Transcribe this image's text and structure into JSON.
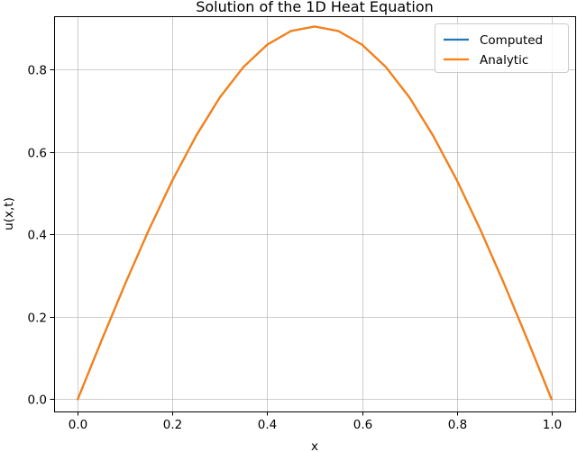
{
  "chart_data": {
    "type": "line",
    "title": "Solution of the 1D Heat Equation",
    "xlabel": "x",
    "ylabel": "u(x,t)",
    "xlim": [
      -0.05,
      1.05
    ],
    "ylim": [
      -0.03,
      0.93
    ],
    "xticks": [
      0.0,
      0.2,
      0.4,
      0.6,
      0.8,
      1.0
    ],
    "xtick_labels": [
      "0.0",
      "0.2",
      "0.4",
      "0.6",
      "0.8",
      "1.0"
    ],
    "yticks": [
      0.0,
      0.2,
      0.4,
      0.6,
      0.8
    ],
    "ytick_labels": [
      "0.0",
      "0.2",
      "0.4",
      "0.6",
      "0.8"
    ],
    "grid": true,
    "legend_position": "top-right",
    "series": [
      {
        "name": "Computed",
        "color": "#1f77b4",
        "x": [
          0.0,
          0.05,
          0.1,
          0.15,
          0.2,
          0.25,
          0.3,
          0.35,
          0.4,
          0.45,
          0.5,
          0.55,
          0.6,
          0.65,
          0.7,
          0.75,
          0.8,
          0.85,
          0.9,
          0.95,
          1.0
        ],
        "y": [
          0.0,
          0.142,
          0.28,
          0.411,
          0.532,
          0.64,
          0.733,
          0.807,
          0.861,
          0.894,
          0.905,
          0.894,
          0.861,
          0.807,
          0.733,
          0.64,
          0.532,
          0.411,
          0.28,
          0.142,
          0.0
        ]
      },
      {
        "name": "Analytic",
        "color": "#ff7f0e",
        "x": [
          0.0,
          0.05,
          0.1,
          0.15,
          0.2,
          0.25,
          0.3,
          0.35,
          0.4,
          0.45,
          0.5,
          0.55,
          0.6,
          0.65,
          0.7,
          0.75,
          0.8,
          0.85,
          0.9,
          0.95,
          1.0
        ],
        "y": [
          0.0,
          0.142,
          0.28,
          0.411,
          0.532,
          0.64,
          0.733,
          0.807,
          0.861,
          0.894,
          0.905,
          0.894,
          0.861,
          0.807,
          0.733,
          0.64,
          0.532,
          0.411,
          0.28,
          0.142,
          0.0
        ]
      }
    ]
  }
}
